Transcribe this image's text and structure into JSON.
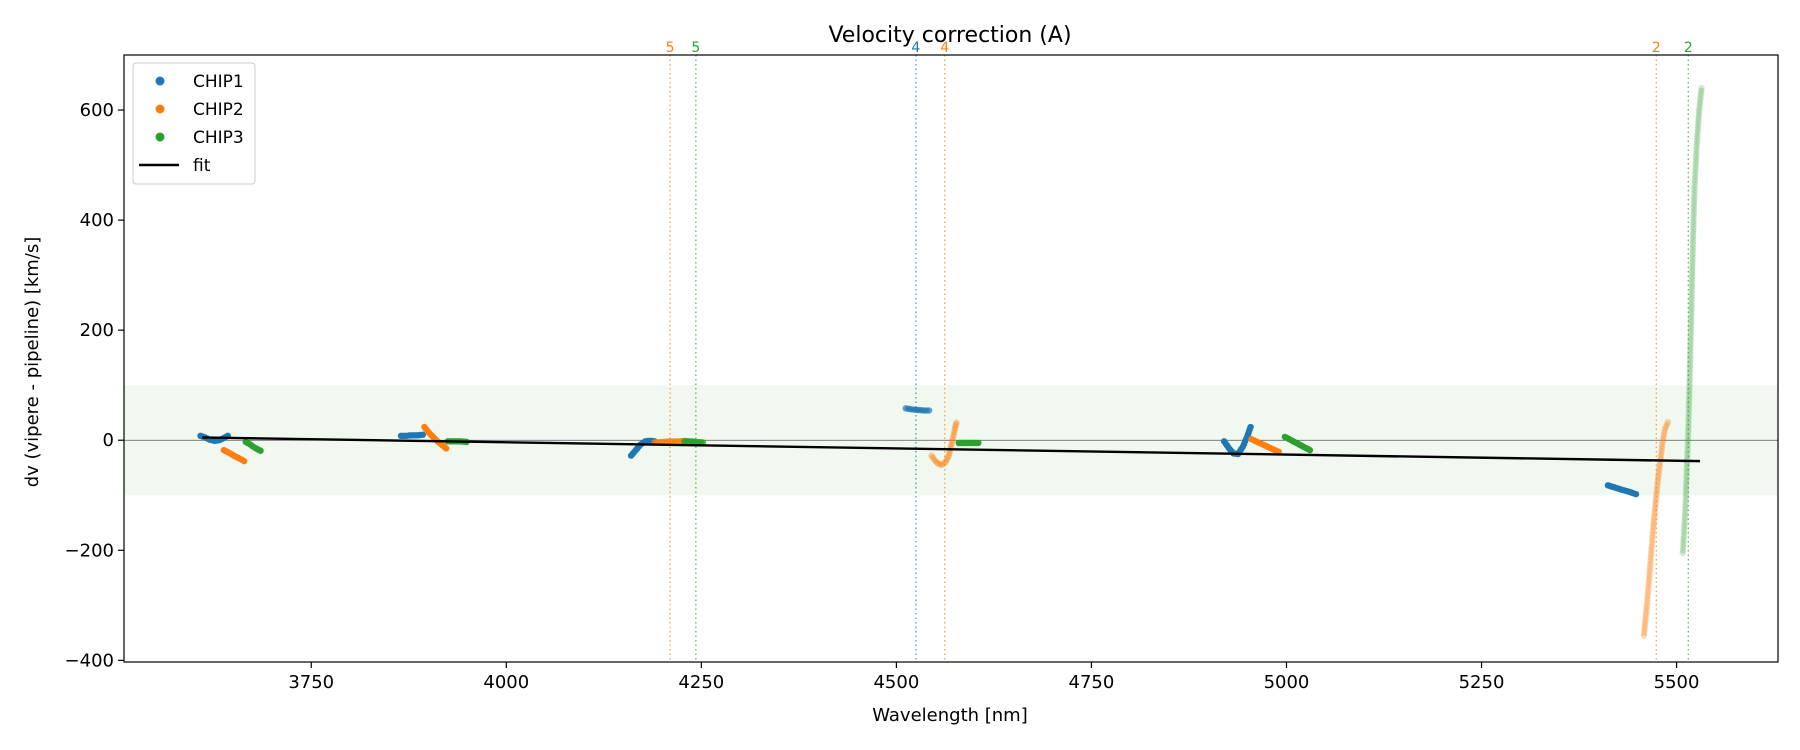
{
  "chart_data": {
    "type": "scatter",
    "title": "Velocity correction (A)",
    "xlabel": "Wavelength [nm]",
    "ylabel": "dv (vipere - pipeline) [km/s]",
    "xlim": [
      3510,
      5630
    ],
    "ylim": [
      -403,
      700
    ],
    "xticks": [
      3750,
      4000,
      4250,
      4500,
      4750,
      5000,
      5250,
      5500
    ],
    "yticks": [
      -400,
      -200,
      0,
      200,
      400,
      600
    ],
    "xtick_labels": [
      "3750",
      "4000",
      "4250",
      "4500",
      "4750",
      "5000",
      "5250",
      "5500"
    ],
    "ytick_labels": [
      "−400",
      "−200",
      "0",
      "200",
      "400",
      "600"
    ],
    "band": {
      "ymin": -100,
      "ymax": 100,
      "color": "#2ca02c"
    },
    "zero_line": 0,
    "colors": {
      "CHIP1": "#1f77b4",
      "CHIP2": "#ff7f0e",
      "CHIP3": "#2ca02c",
      "fit": "#000000"
    },
    "legend": {
      "position": "upper-left",
      "entries": [
        {
          "label": "CHIP1",
          "color": "#1f77b4",
          "marker": "dot"
        },
        {
          "label": "CHIP2",
          "color": "#ff7f0e",
          "marker": "dot"
        },
        {
          "label": "CHIP3",
          "color": "#2ca02c",
          "marker": "dot"
        },
        {
          "label": "fit",
          "color": "#000000",
          "marker": "line"
        }
      ]
    },
    "fit": {
      "x": [
        3610,
        5530
      ],
      "y": [
        5,
        -38
      ]
    },
    "order_markers": [
      {
        "x": 4210,
        "label": "5",
        "color": "#ff7f0e"
      },
      {
        "x": 4243,
        "label": "5",
        "color": "#2ca02c"
      },
      {
        "x": 4525,
        "label": "4",
        "color": "#1f77b4"
      },
      {
        "x": 4562,
        "label": "4",
        "color": "#ff7f0e"
      },
      {
        "x": 5474,
        "label": "2",
        "color": "#ff7f0e"
      },
      {
        "x": 5515,
        "label": "2",
        "color": "#2ca02c"
      }
    ],
    "segments": [
      {
        "name": "CHIP1",
        "order": "6",
        "opacity": 1.0,
        "points": [
          [
            3608,
            8
          ],
          [
            3614,
            5
          ],
          [
            3620,
            1
          ],
          [
            3626,
            -1
          ],
          [
            3632,
            0
          ],
          [
            3638,
            4
          ],
          [
            3643,
            8
          ]
        ]
      },
      {
        "name": "CHIP2",
        "order": "6",
        "opacity": 1.0,
        "points": [
          [
            3638,
            -18
          ],
          [
            3645,
            -23
          ],
          [
            3652,
            -29
          ],
          [
            3659,
            -34
          ],
          [
            3664,
            -38
          ]
        ]
      },
      {
        "name": "CHIP3",
        "order": "6",
        "opacity": 1.0,
        "points": [
          [
            3666,
            -3
          ],
          [
            3672,
            -8
          ],
          [
            3678,
            -14
          ],
          [
            3685,
            -19
          ]
        ]
      },
      {
        "name": "CHIP1",
        "order": "5a",
        "opacity": 1.0,
        "points": [
          [
            3865,
            8
          ],
          [
            3872,
            8
          ],
          [
            3879,
            9
          ],
          [
            3886,
            9
          ],
          [
            3893,
            10
          ]
        ]
      },
      {
        "name": "CHIP2",
        "order": "5a",
        "opacity": 1.0,
        "points": [
          [
            3895,
            24
          ],
          [
            3900,
            15
          ],
          [
            3906,
            6
          ],
          [
            3912,
            -2
          ],
          [
            3918,
            -9
          ],
          [
            3923,
            -15
          ]
        ]
      },
      {
        "name": "CHIP3",
        "order": "5a",
        "opacity": 1.0,
        "points": [
          [
            3925,
            -2
          ],
          [
            3933,
            -2
          ],
          [
            3941,
            -2
          ],
          [
            3949,
            -3
          ]
        ]
      },
      {
        "name": "CHIP1",
        "order": "5b",
        "opacity": 1.0,
        "points": [
          [
            4160,
            -28
          ],
          [
            4166,
            -18
          ],
          [
            4172,
            -8
          ],
          [
            4178,
            -2
          ],
          [
            4184,
            -1
          ],
          [
            4190,
            -2
          ]
        ]
      },
      {
        "name": "CHIP2",
        "order": "5b",
        "opacity": 0.75,
        "points": [
          [
            4190,
            -4
          ],
          [
            4200,
            -3
          ],
          [
            4210,
            -2
          ],
          [
            4220,
            -2
          ],
          [
            4230,
            -1
          ]
        ]
      },
      {
        "name": "CHIP3",
        "order": "5b",
        "opacity": 0.8,
        "points": [
          [
            4228,
            -2
          ],
          [
            4236,
            -2
          ],
          [
            4244,
            -3
          ],
          [
            4252,
            -4
          ]
        ]
      },
      {
        "name": "CHIP1",
        "order": "4",
        "opacity": 0.65,
        "points": [
          [
            4512,
            58
          ],
          [
            4520,
            56
          ],
          [
            4528,
            55
          ],
          [
            4536,
            54
          ],
          [
            4542,
            54
          ]
        ]
      },
      {
        "name": "CHIP2",
        "order": "4",
        "opacity": 0.4,
        "points": [
          [
            4545,
            -28
          ],
          [
            4549,
            -36
          ],
          [
            4553,
            -42
          ],
          [
            4558,
            -45
          ],
          [
            4563,
            -40
          ],
          [
            4567,
            -28
          ],
          [
            4571,
            -5
          ],
          [
            4575,
            20
          ],
          [
            4577,
            32
          ]
        ]
      },
      {
        "name": "CHIP3",
        "order": "4",
        "opacity": 1.0,
        "points": [
          [
            4580,
            -5
          ],
          [
            4588,
            -5
          ],
          [
            4596,
            -5
          ],
          [
            4605,
            -5
          ]
        ]
      },
      {
        "name": "CHIP1",
        "order": "3",
        "opacity": 1.0,
        "points": [
          [
            4920,
            -2
          ],
          [
            4926,
            -14
          ],
          [
            4932,
            -24
          ],
          [
            4938,
            -25
          ],
          [
            4944,
            -12
          ],
          [
            4950,
            8
          ],
          [
            4954,
            24
          ]
        ]
      },
      {
        "name": "CHIP2",
        "order": "3",
        "opacity": 1.0,
        "points": [
          [
            4955,
            2
          ],
          [
            4964,
            -4
          ],
          [
            4973,
            -10
          ],
          [
            4982,
            -16
          ],
          [
            4990,
            -21
          ]
        ]
      },
      {
        "name": "CHIP3",
        "order": "3",
        "opacity": 1.0,
        "points": [
          [
            4998,
            6
          ],
          [
            5006,
            0
          ],
          [
            5014,
            -6
          ],
          [
            5022,
            -12
          ],
          [
            5030,
            -18
          ]
        ]
      },
      {
        "name": "CHIP1",
        "order": "2",
        "opacity": 1.0,
        "points": [
          [
            5412,
            -82
          ],
          [
            5421,
            -86
          ],
          [
            5430,
            -90
          ],
          [
            5440,
            -94
          ],
          [
            5448,
            -98
          ]
        ]
      },
      {
        "name": "CHIP2",
        "order": "2",
        "opacity": 0.3,
        "points": [
          [
            5458,
            -355
          ],
          [
            5462,
            -300
          ],
          [
            5466,
            -230
          ],
          [
            5470,
            -160
          ],
          [
            5474,
            -100
          ],
          [
            5478,
            -50
          ],
          [
            5482,
            -5
          ],
          [
            5485,
            20
          ],
          [
            5489,
            33
          ]
        ]
      },
      {
        "name": "CHIP3",
        "order": "2",
        "opacity": 0.22,
        "points": [
          [
            5508,
            -205
          ],
          [
            5511,
            -130
          ],
          [
            5513,
            -60
          ],
          [
            5515,
            20
          ],
          [
            5517,
            120
          ],
          [
            5519,
            240
          ],
          [
            5521,
            360
          ],
          [
            5523,
            460
          ],
          [
            5526,
            540
          ],
          [
            5529,
            600
          ],
          [
            5532,
            640
          ]
        ]
      }
    ]
  }
}
